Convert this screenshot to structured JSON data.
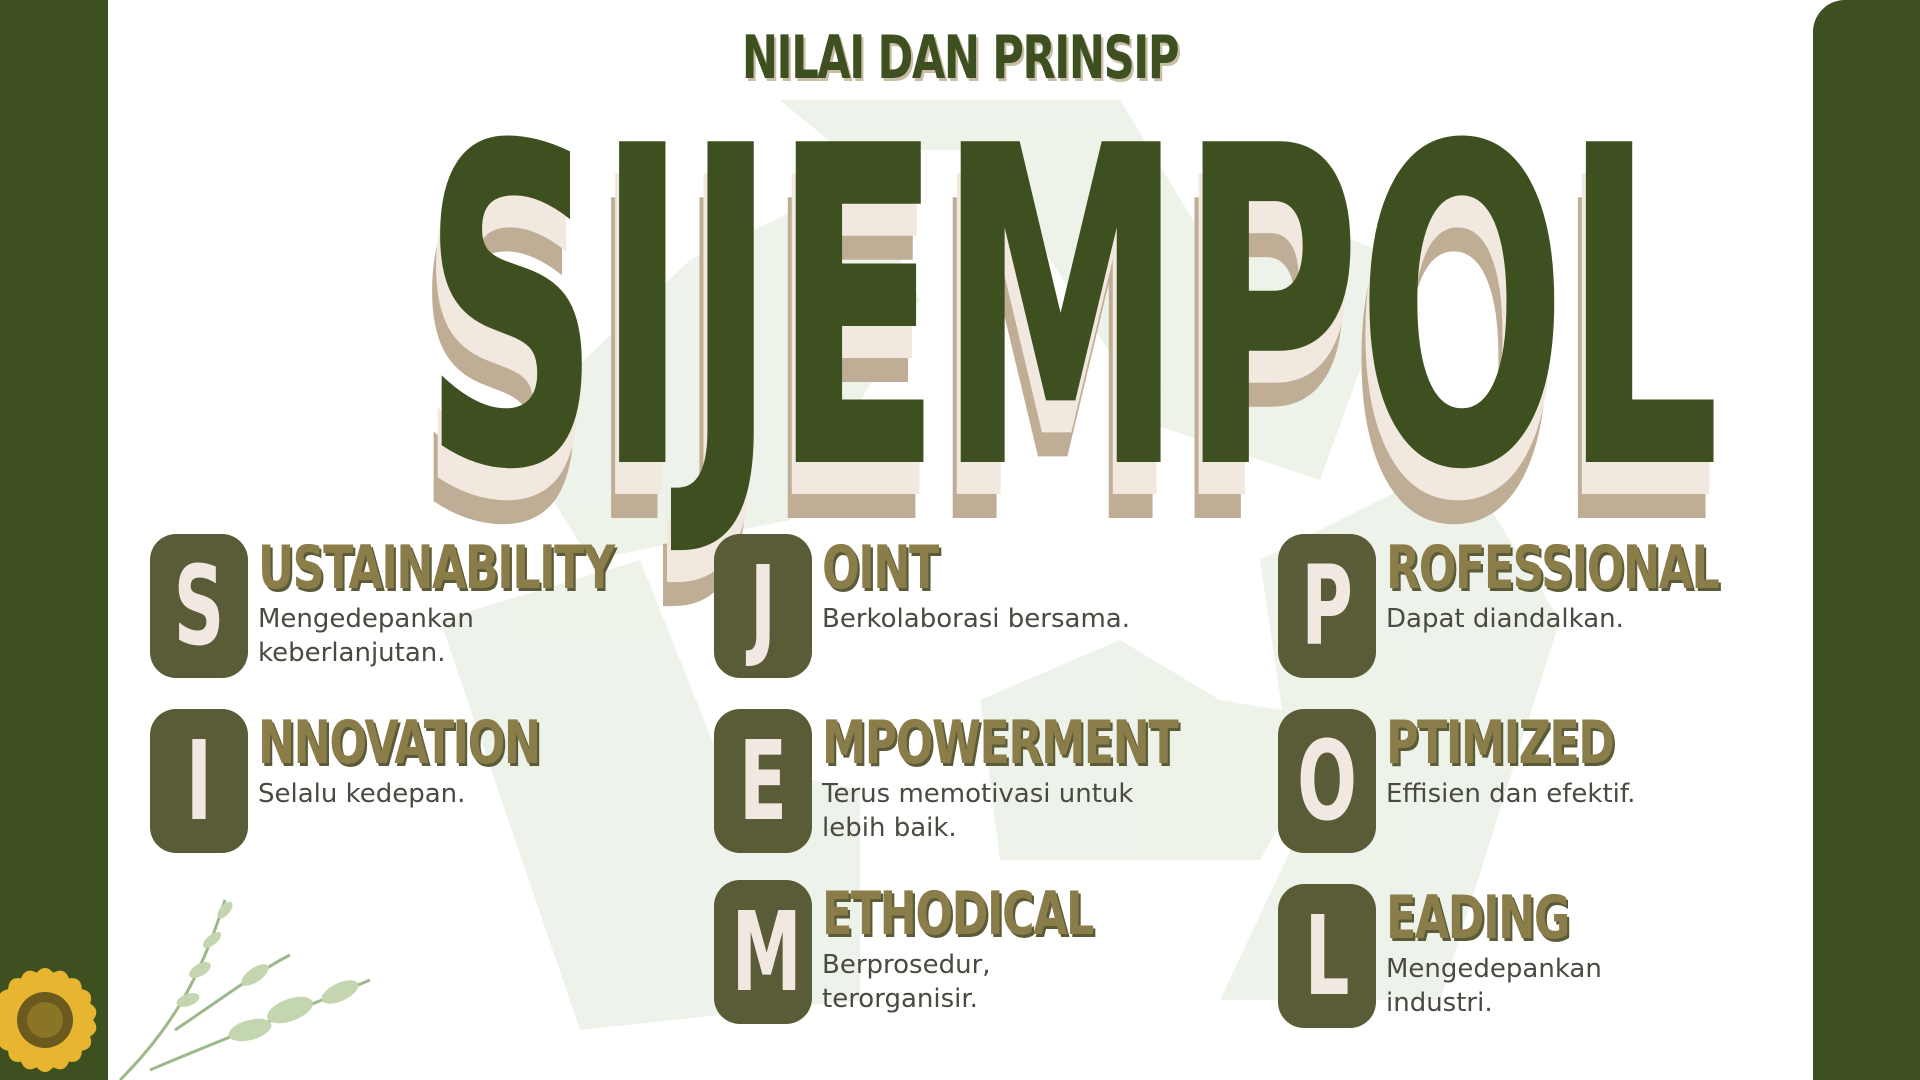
{
  "header": {
    "subtitle": "NILAI DAN PRINSIP",
    "title": "SIJEMPOL"
  },
  "items": [
    {
      "letter": "S",
      "rest": "USTAINABILITY",
      "desc": "Mengedepankan keberlanjutan."
    },
    {
      "letter": "I",
      "rest": "NNOVATION",
      "desc": "Selalu kedepan."
    },
    {
      "letter": "J",
      "rest": "OINT",
      "desc": "Berkolaborasi bersama."
    },
    {
      "letter": "E",
      "rest": "MPOWERMENT",
      "desc": "Terus memotivasi untuk lebih baik."
    },
    {
      "letter": "M",
      "rest": "ETHODICAL",
      "desc": "Berprosedur, terorganisir."
    },
    {
      "letter": "P",
      "rest": "ROFESSIONAL",
      "desc": "Dapat diandalkan."
    },
    {
      "letter": "O",
      "rest": "PTIMIZED",
      "desc": "Effisien dan efektif."
    },
    {
      "letter": "L",
      "rest": "EADING",
      "desc": "Mengedepankan industri."
    }
  ],
  "colors": {
    "primary_green": "#3e5020",
    "letter_box": "#5a5c37",
    "word_olive": "#8a7d4a",
    "shadow_tan": "#bfae95",
    "shadow_cream": "#f1e9df"
  },
  "icons": {
    "watermark": "recycle-icon",
    "decoration": "sunflower-decoration"
  }
}
